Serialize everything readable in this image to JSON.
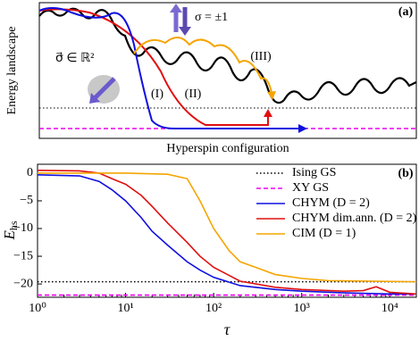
{
  "chart_data": [
    {
      "type": "schematic",
      "title": "(a)",
      "ylabel": "Energy landscape",
      "xlabel": "Hyperspin configuration",
      "annotations": [
        "σ = ±1",
        "σ⃗ ∈ ℝ²",
        "(I)",
        "(II)",
        "(III)"
      ]
    },
    {
      "type": "line",
      "title": "(b)",
      "xlabel": "τ",
      "ylabel": {
        "main": "E",
        "sub": "hs"
      },
      "xscale": "log",
      "xlim": [
        1,
        20000
      ],
      "ylim": [
        -22.4,
        1.6
      ],
      "xticks": [
        {
          "value": 1,
          "label": "10⁰"
        },
        {
          "value": 10,
          "label": "10¹"
        },
        {
          "value": 100,
          "label": "10²"
        },
        {
          "value": 1000,
          "label": "10³"
        },
        {
          "value": 10000,
          "label": "10⁴"
        }
      ],
      "yticks": [
        0,
        {
          "value": -5,
          "label": "−5"
        },
        {
          "value": -10,
          "label": "−10"
        },
        {
          "value": -15,
          "label": "−15"
        },
        {
          "value": -20,
          "label": "−20"
        }
      ],
      "legend": "upper right",
      "series": [
        {
          "name": "Ising GS",
          "color": "#000000",
          "style": "dotted",
          "x": [
            1,
            20000
          ],
          "values": [
            -19.6,
            -19.6
          ]
        },
        {
          "name": "XY GS",
          "color": "#ee00ee",
          "style": "dashed",
          "x": [
            1,
            20000
          ],
          "values": [
            -22.0,
            -22.0
          ]
        },
        {
          "name": "CHYM (D = 2)",
          "color": "#1010e0",
          "style": "solid",
          "x": [
            1,
            3,
            5,
            7,
            10,
            15,
            20,
            30,
            50,
            70,
            100,
            200,
            500,
            1000,
            3000,
            10000,
            20000
          ],
          "values": [
            -0.3,
            -0.5,
            -1.5,
            -3,
            -5,
            -8,
            -10.5,
            -13,
            -16,
            -17.5,
            -18.8,
            -20.3,
            -21,
            -21.3,
            -21.6,
            -21.8,
            -21.8
          ]
        },
        {
          "name": "CHYM dim.ann. (D = 2)",
          "color": "#e01010",
          "style": "solid",
          "x": [
            1,
            3,
            5,
            7,
            10,
            15,
            20,
            30,
            50,
            70,
            100,
            200,
            500,
            1000,
            3000,
            5000,
            7000,
            10000,
            20000
          ],
          "values": [
            0.5,
            0.4,
            0,
            -1,
            -2,
            -4,
            -6,
            -9,
            -12.5,
            -15,
            -17,
            -19.5,
            -20.6,
            -21,
            -21.3,
            -21.2,
            -20.5,
            -21.5,
            -21.8
          ]
        },
        {
          "name": "CIM (D = 1)",
          "color": "#f5a500",
          "style": "solid",
          "x": [
            1,
            10,
            30,
            50,
            70,
            100,
            150,
            200,
            300,
            500,
            1000,
            2000,
            20000
          ],
          "values": [
            0,
            0,
            -0.2,
            -1,
            -5,
            -10,
            -14,
            -16,
            -17,
            -18.3,
            -19,
            -19.4,
            -19.6
          ]
        }
      ]
    }
  ]
}
